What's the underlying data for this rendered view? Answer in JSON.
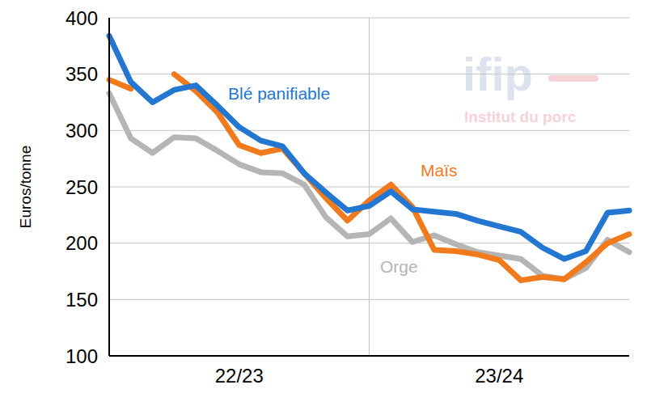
{
  "chart_data": {
    "type": "line",
    "ylabel": "Euros/tonne",
    "categories": [
      null,
      null,
      null,
      null,
      null,
      null,
      "22/23",
      null,
      null,
      null,
      null,
      null,
      null,
      null,
      null,
      null,
      null,
      null,
      "23/24",
      null,
      null,
      null,
      null,
      null,
      null
    ],
    "series": [
      {
        "name": "Blé panifiable",
        "color": "#2377d0",
        "values": [
          384,
          343,
          325,
          336,
          340,
          322,
          303,
          291,
          286,
          262,
          245,
          229,
          233,
          246,
          230,
          228,
          226,
          220,
          215,
          210,
          196,
          186,
          193,
          227,
          229
        ]
      },
      {
        "name": "Maïs",
        "color": "#f07a1c",
        "values": [
          345,
          337,
          null,
          350,
          335,
          316,
          287,
          280,
          284,
          262,
          240,
          220,
          238,
          252,
          232,
          194,
          193,
          190,
          185,
          167,
          170,
          168,
          183,
          200,
          208
        ]
      },
      {
        "name": "Orge",
        "color": "#b5b5b5",
        "values": [
          333,
          293,
          280,
          294,
          293,
          282,
          270,
          263,
          262,
          252,
          223,
          206,
          208,
          222,
          201,
          207,
          199,
          192,
          189,
          186,
          171,
          168,
          178,
          203,
          192
        ]
      }
    ],
    "ylim": [
      100,
      400
    ],
    "yticks": [
      100,
      150,
      200,
      250,
      300,
      350,
      400
    ],
    "grid": true,
    "annotations": [
      "ifip",
      "Institut du porc"
    ]
  }
}
